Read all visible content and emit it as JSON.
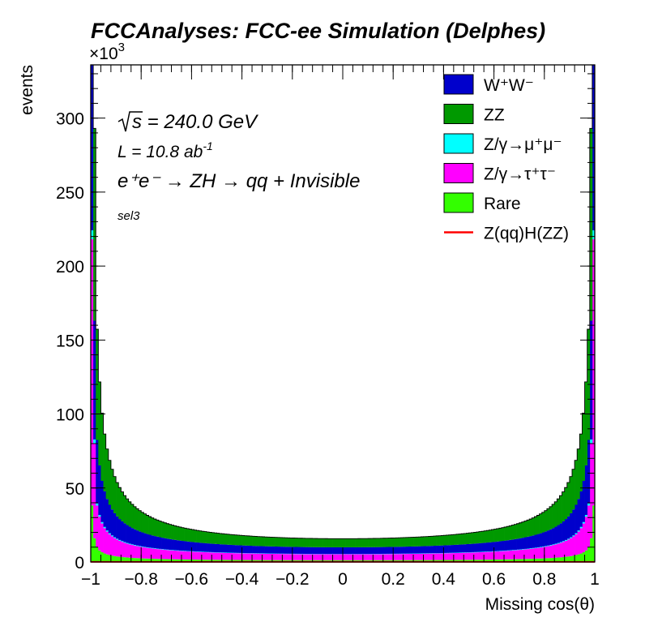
{
  "chart_data": {
    "type": "bar",
    "stacked": true,
    "histogram": true,
    "title": "FCCAnalyses: FCC-ee Simulation (Delphes)",
    "xlabel": "Missing cos(θ)",
    "ylabel": "events",
    "y_multiplier": "×10",
    "y_multiplier_exp": "3",
    "xlim": [
      -1,
      1
    ],
    "ylim": [
      0,
      336
    ],
    "nbins": 200,
    "x_ticks": [
      -1,
      -0.8,
      -0.6,
      -0.4,
      -0.2,
      0,
      0.2,
      0.4,
      0.6,
      0.8,
      1
    ],
    "x_tick_labels": [
      "−1",
      "−0.8",
      "−0.6",
      "−0.4",
      "−0.2",
      "0",
      "0.2",
      "0.4",
      "0.6",
      "0.8",
      "1"
    ],
    "y_ticks": [
      0,
      50,
      100,
      150,
      200,
      250,
      300
    ],
    "y_tick_labels": [
      "0",
      "50",
      "100",
      "150",
      "200",
      "250",
      "300"
    ],
    "annotations": {
      "sqrt_s": "s = 240.0 GeV",
      "lumi": "L = 10.8 ab",
      "lumi_exp": "-1",
      "process": "e⁺e⁻ → ZH → qq + Invisible",
      "selection": "sel3"
    },
    "legend_position": "top-right",
    "series": [
      {
        "name": "Rare",
        "color": "#33ff00",
        "profile": {
          "center": 1.2,
          "k": 0.35,
          "p": 0.7,
          "edge": 8
        }
      },
      {
        "name": "Z/γ→τ⁺τ⁻",
        "color": "#ff00ff",
        "profile": {
          "center": 4.0,
          "k": 1.0,
          "p": 0.65,
          "edge": 100
        }
      },
      {
        "name": "Z/γ→μ⁺μ⁻",
        "color": "#00ffff",
        "profile": {
          "center": 0.2,
          "k": 0.05,
          "p": 0.65,
          "edge": 2
        }
      },
      {
        "name": "W⁺W⁻",
        "color": "#0000cc",
        "profile": {
          "center": 4.5,
          "k": 0.7,
          "p": 0.75,
          "edge": 70
        }
      },
      {
        "name": "ZZ",
        "color": "#009900",
        "profile": {
          "center": 5.8,
          "k": 0.9,
          "p": 0.85,
          "edge": 60
        }
      },
      {
        "name": "Z(qq)H(ZZ)",
        "color": "#ff0000",
        "line": true,
        "profile": {
          "center": 0.05,
          "k": 0.0,
          "p": 1,
          "edge": 0
        }
      }
    ],
    "legend_order": [
      "W⁺W⁻",
      "ZZ",
      "Z/γ→μ⁺μ⁻",
      "Z/γ→τ⁺τ⁻",
      "Rare",
      "Z(qq)H(ZZ)"
    ]
  }
}
